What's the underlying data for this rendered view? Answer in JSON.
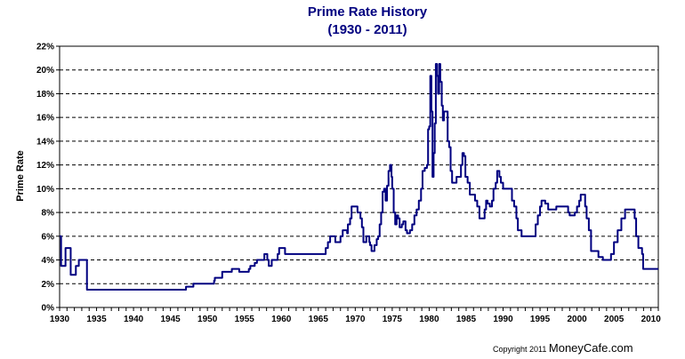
{
  "chart_data": {
    "type": "line",
    "title": "Prime Rate History",
    "subtitle": "(1930 - 2011)",
    "ylabel": "Prime Rate",
    "xlabel": "",
    "xlim": [
      1930,
      2011
    ],
    "ylim": [
      0,
      22
    ],
    "y_ticks": [
      "0%",
      "2%",
      "4%",
      "6%",
      "8%",
      "10%",
      "12%",
      "14%",
      "16%",
      "18%",
      "20%",
      "22%"
    ],
    "x_ticks": [
      "1930",
      "1935",
      "1940",
      "1945",
      "1950",
      "1955",
      "1960",
      "1965",
      "1970",
      "1975",
      "1980",
      "1985",
      "1990",
      "1995",
      "2000",
      "2005",
      "2010"
    ],
    "grid": "horizontal dashed",
    "line_color": "#000080",
    "series": [
      {
        "step": true,
        "points": [
          [
            1930.0,
            6.0
          ],
          [
            1930.2,
            3.5
          ],
          [
            1930.6,
            3.5
          ],
          [
            1930.8,
            5.0
          ],
          [
            1931.3,
            5.0
          ],
          [
            1931.5,
            2.75
          ],
          [
            1932.0,
            2.75
          ],
          [
            1932.2,
            3.5
          ],
          [
            1932.5,
            3.5
          ],
          [
            1932.6,
            4.0
          ],
          [
            1933.6,
            4.0
          ],
          [
            1933.7,
            1.5
          ],
          [
            1947.0,
            1.5
          ],
          [
            1947.1,
            1.75
          ],
          [
            1948.0,
            1.75
          ],
          [
            1948.1,
            2.0
          ],
          [
            1950.8,
            2.0
          ],
          [
            1950.9,
            2.25
          ],
          [
            1951.0,
            2.5
          ],
          [
            1951.9,
            2.5
          ],
          [
            1952.0,
            3.0
          ],
          [
            1953.2,
            3.0
          ],
          [
            1953.3,
            3.25
          ],
          [
            1954.2,
            3.25
          ],
          [
            1954.3,
            3.0
          ],
          [
            1955.5,
            3.0
          ],
          [
            1955.6,
            3.25
          ],
          [
            1955.8,
            3.5
          ],
          [
            1956.3,
            3.5
          ],
          [
            1956.4,
            3.75
          ],
          [
            1956.7,
            4.0
          ],
          [
            1957.6,
            4.0
          ],
          [
            1957.7,
            4.5
          ],
          [
            1958.0,
            4.5
          ],
          [
            1958.1,
            4.0
          ],
          [
            1958.3,
            3.5
          ],
          [
            1958.6,
            3.5
          ],
          [
            1958.7,
            4.0
          ],
          [
            1959.4,
            4.0
          ],
          [
            1959.5,
            4.5
          ],
          [
            1959.7,
            5.0
          ],
          [
            1960.4,
            5.0
          ],
          [
            1960.5,
            4.5
          ],
          [
            1965.9,
            4.5
          ],
          [
            1966.0,
            5.0
          ],
          [
            1966.3,
            5.5
          ],
          [
            1966.6,
            6.0
          ],
          [
            1967.2,
            6.0
          ],
          [
            1967.3,
            5.5
          ],
          [
            1967.9,
            5.5
          ],
          [
            1968.0,
            6.0
          ],
          [
            1968.3,
            6.5
          ],
          [
            1968.8,
            6.5
          ],
          [
            1968.9,
            6.25
          ],
          [
            1969.0,
            7.0
          ],
          [
            1969.3,
            7.5
          ],
          [
            1969.5,
            8.5
          ],
          [
            1970.2,
            8.5
          ],
          [
            1970.3,
            8.0
          ],
          [
            1970.7,
            7.5
          ],
          [
            1970.9,
            6.75
          ],
          [
            1971.1,
            5.5
          ],
          [
            1971.3,
            5.5
          ],
          [
            1971.5,
            6.0
          ],
          [
            1971.7,
            6.0
          ],
          [
            1971.9,
            5.5
          ],
          [
            1972.0,
            5.25
          ],
          [
            1972.2,
            4.75
          ],
          [
            1972.6,
            5.25
          ],
          [
            1972.9,
            5.75
          ],
          [
            1973.1,
            6.0
          ],
          [
            1973.3,
            7.0
          ],
          [
            1973.5,
            8.0
          ],
          [
            1973.7,
            9.75
          ],
          [
            1973.9,
            10.0
          ],
          [
            1974.1,
            9.0
          ],
          [
            1974.3,
            10.25
          ],
          [
            1974.5,
            11.5
          ],
          [
            1974.7,
            12.0
          ],
          [
            1974.9,
            11.0
          ],
          [
            1975.0,
            10.0
          ],
          [
            1975.2,
            8.0
          ],
          [
            1975.4,
            7.0
          ],
          [
            1975.6,
            7.75
          ],
          [
            1975.8,
            7.5
          ],
          [
            1976.0,
            6.75
          ],
          [
            1976.3,
            7.0
          ],
          [
            1976.5,
            7.25
          ],
          [
            1976.8,
            6.5
          ],
          [
            1977.0,
            6.25
          ],
          [
            1977.4,
            6.5
          ],
          [
            1977.7,
            7.0
          ],
          [
            1978.0,
            7.75
          ],
          [
            1978.3,
            8.25
          ],
          [
            1978.6,
            9.0
          ],
          [
            1978.9,
            10.0
          ],
          [
            1979.1,
            11.5
          ],
          [
            1979.4,
            11.75
          ],
          [
            1979.7,
            12.0
          ],
          [
            1979.85,
            15.0
          ],
          [
            1980.0,
            15.25
          ],
          [
            1980.15,
            19.5
          ],
          [
            1980.3,
            16.5
          ],
          [
            1980.45,
            11.0
          ],
          [
            1980.6,
            13.0
          ],
          [
            1980.75,
            15.5
          ],
          [
            1980.9,
            20.5
          ],
          [
            1981.05,
            19.5
          ],
          [
            1981.2,
            18.0
          ],
          [
            1981.35,
            20.5
          ],
          [
            1981.5,
            19.0
          ],
          [
            1981.7,
            17.0
          ],
          [
            1981.85,
            15.75
          ],
          [
            1982.0,
            16.5
          ],
          [
            1982.3,
            16.5
          ],
          [
            1982.5,
            14.0
          ],
          [
            1982.7,
            13.5
          ],
          [
            1982.9,
            11.5
          ],
          [
            1983.1,
            10.5
          ],
          [
            1983.5,
            10.5
          ],
          [
            1983.7,
            11.0
          ],
          [
            1984.1,
            11.0
          ],
          [
            1984.3,
            12.0
          ],
          [
            1984.5,
            13.0
          ],
          [
            1984.7,
            12.75
          ],
          [
            1984.9,
            11.0
          ],
          [
            1985.2,
            10.5
          ],
          [
            1985.5,
            9.5
          ],
          [
            1986.0,
            9.5
          ],
          [
            1986.2,
            9.0
          ],
          [
            1986.5,
            8.5
          ],
          [
            1986.8,
            7.5
          ],
          [
            1987.3,
            7.5
          ],
          [
            1987.5,
            8.25
          ],
          [
            1987.7,
            9.0
          ],
          [
            1987.9,
            8.75
          ],
          [
            1988.2,
            8.5
          ],
          [
            1988.5,
            9.0
          ],
          [
            1988.7,
            10.0
          ],
          [
            1989.0,
            10.5
          ],
          [
            1989.2,
            11.5
          ],
          [
            1989.5,
            11.0
          ],
          [
            1989.7,
            10.5
          ],
          [
            1990.0,
            10.0
          ],
          [
            1991.0,
            10.0
          ],
          [
            1991.2,
            9.0
          ],
          [
            1991.5,
            8.5
          ],
          [
            1991.8,
            7.5
          ],
          [
            1992.0,
            6.5
          ],
          [
            1992.5,
            6.0
          ],
          [
            1994.2,
            6.0
          ],
          [
            1994.4,
            7.0
          ],
          [
            1994.7,
            7.75
          ],
          [
            1995.0,
            8.5
          ],
          [
            1995.2,
            9.0
          ],
          [
            1995.7,
            8.75
          ],
          [
            1996.1,
            8.25
          ],
          [
            1997.2,
            8.5
          ],
          [
            1998.6,
            8.5
          ],
          [
            1998.8,
            8.0
          ],
          [
            1999.0,
            7.75
          ],
          [
            1999.5,
            7.75
          ],
          [
            1999.7,
            8.0
          ],
          [
            2000.0,
            8.5
          ],
          [
            2000.3,
            9.0
          ],
          [
            2000.5,
            9.5
          ],
          [
            2000.9,
            9.5
          ],
          [
            2001.1,
            8.5
          ],
          [
            2001.3,
            7.5
          ],
          [
            2001.6,
            6.5
          ],
          [
            2001.9,
            4.75
          ],
          [
            2002.9,
            4.25
          ],
          [
            2003.5,
            4.0
          ],
          [
            2004.4,
            4.0
          ],
          [
            2004.6,
            4.5
          ],
          [
            2005.0,
            5.5
          ],
          [
            2005.5,
            6.5
          ],
          [
            2006.0,
            7.5
          ],
          [
            2006.5,
            8.25
          ],
          [
            2007.6,
            8.25
          ],
          [
            2007.8,
            7.5
          ],
          [
            2008.0,
            6.0
          ],
          [
            2008.3,
            5.0
          ],
          [
            2008.8,
            4.5
          ],
          [
            2008.95,
            3.25
          ],
          [
            2011.0,
            3.25
          ]
        ]
      }
    ]
  },
  "copyright": {
    "text": "Copyright 2011",
    "brand": "MoneyCafe.com"
  }
}
